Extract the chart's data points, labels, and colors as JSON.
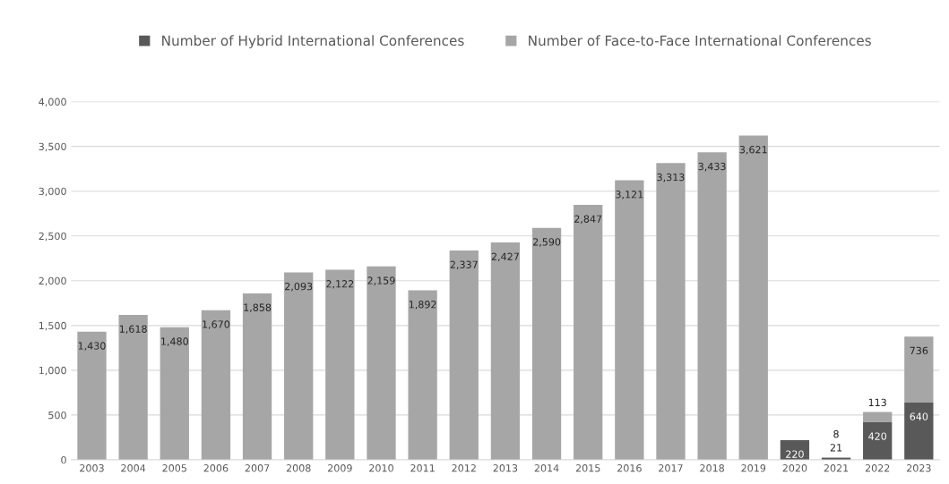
{
  "chart_data": {
    "type": "bar",
    "stacked": true,
    "categories": [
      "2003",
      "2004",
      "2005",
      "2006",
      "2007",
      "2008",
      "2009",
      "2010",
      "2011",
      "2012",
      "2013",
      "2014",
      "2015",
      "2016",
      "2017",
      "2018",
      "2019",
      "2020",
      "2021",
      "2022",
      "2023"
    ],
    "series": [
      {
        "name": "Number of Hybrid International Conferences",
        "color": "#595959",
        "values": [
          null,
          null,
          null,
          null,
          null,
          null,
          null,
          null,
          null,
          null,
          null,
          null,
          null,
          null,
          null,
          null,
          null,
          220,
          21,
          420,
          640
        ],
        "value_labels": [
          null,
          null,
          null,
          null,
          null,
          null,
          null,
          null,
          null,
          null,
          null,
          null,
          null,
          null,
          null,
          null,
          null,
          "220",
          "21",
          "420",
          "640"
        ]
      },
      {
        "name": "Number of Face-to-Face International Conferences",
        "color": "#a6a6a6",
        "values": [
          1430,
          1618,
          1480,
          1670,
          1858,
          2093,
          2122,
          2159,
          1892,
          2337,
          2427,
          2590,
          2847,
          3121,
          3313,
          3433,
          3621,
          null,
          8,
          113,
          736
        ],
        "value_labels": [
          "1,430",
          "1,618",
          "1,480",
          "1,670",
          "1,858",
          "2,093",
          "2,122",
          "2,159",
          "1,892",
          "2,337",
          "2,427",
          "2,590",
          "2,847",
          "3,121",
          "3,313",
          "3,433",
          "3,621",
          null,
          "8",
          "113",
          "736"
        ]
      }
    ],
    "ylim": [
      0,
      4000
    ],
    "yticks": [
      {
        "value": 0,
        "label": "0"
      },
      {
        "value": 500,
        "label": "500"
      },
      {
        "value": 1000,
        "label": "1,000"
      },
      {
        "value": 1500,
        "label": "1,500"
      },
      {
        "value": 2000,
        "label": "2,000"
      },
      {
        "value": 2500,
        "label": "2,500"
      },
      {
        "value": 3000,
        "label": "3,000"
      },
      {
        "value": 3500,
        "label": "3,500"
      },
      {
        "value": 4000,
        "label": "4,000"
      }
    ],
    "grid": "y",
    "legend": "top"
  }
}
